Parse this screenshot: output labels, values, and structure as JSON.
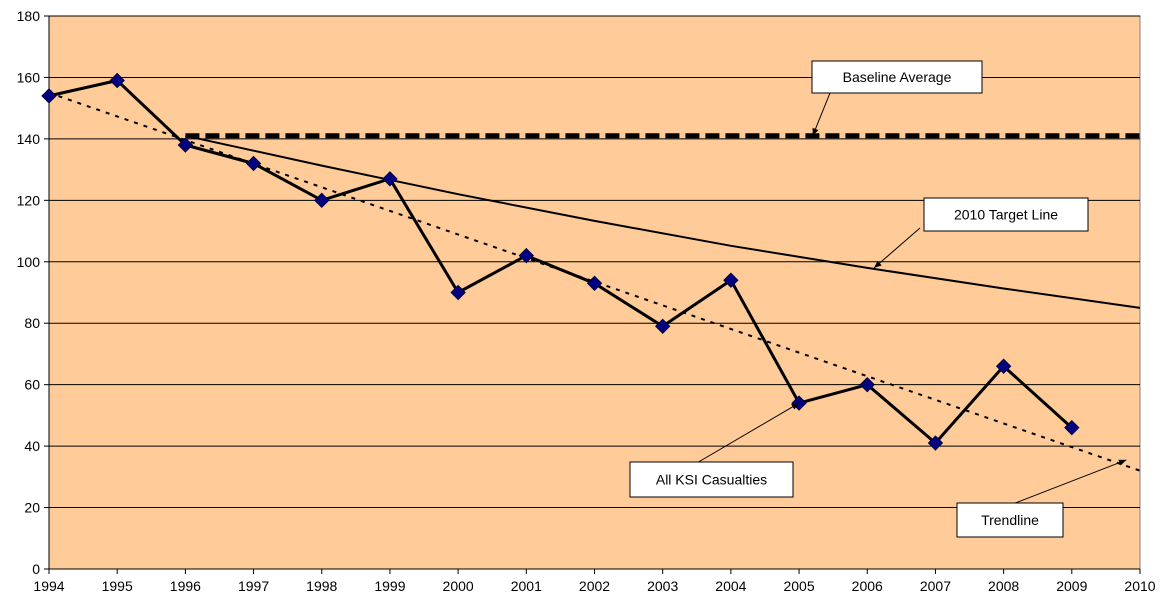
{
  "chart_data": {
    "type": "line",
    "x": [
      1994,
      1995,
      1996,
      1997,
      1998,
      1999,
      2000,
      2001,
      2002,
      2003,
      2004,
      2005,
      2006,
      2007,
      2008,
      2009,
      2010
    ],
    "xlim": [
      1994,
      2010
    ],
    "ylim": [
      0,
      180
    ],
    "yticks": [
      0,
      20,
      40,
      60,
      80,
      100,
      120,
      140,
      160,
      180
    ],
    "grid": "horizontal",
    "plot_background": "#FFCC99",
    "series": [
      {
        "name": "All KSI Casualties",
        "style": "solid-with-diamond-markers",
        "color": "#000000",
        "marker_color": "#000080",
        "x": [
          1994,
          1995,
          1996,
          1997,
          1998,
          1999,
          2000,
          2001,
          2002,
          2003,
          2004,
          2005,
          2006,
          2007,
          2008,
          2009
        ],
        "y": [
          154,
          159,
          138,
          132,
          120,
          127,
          90,
          102,
          93,
          79,
          94,
          54,
          60,
          41,
          66,
          46
        ]
      },
      {
        "name": "Baseline Average",
        "style": "dashed-thick",
        "color": "#000000",
        "x": [
          1996,
          2010
        ],
        "y": [
          141,
          141
        ]
      },
      {
        "name": "2010 Target Line",
        "style": "solid",
        "color": "#000000",
        "x": [
          1996,
          1998,
          2000,
          2002,
          2004,
          2006,
          2008,
          2010
        ],
        "y": [
          141,
          131.3,
          122,
          113.3,
          105.2,
          98,
          91.3,
          85
        ]
      },
      {
        "name": "Trendline",
        "style": "dotted",
        "color": "#000000",
        "x": [
          1994,
          2010
        ],
        "y": [
          155,
          32
        ]
      }
    ],
    "annotations": [
      {
        "text": "Baseline Average",
        "target": [
          2005.2,
          141
        ]
      },
      {
        "text": "2010 Target Line",
        "target": [
          2006.1,
          98
        ]
      },
      {
        "text": "All KSI Casualties",
        "target": [
          2005.0,
          54
        ]
      },
      {
        "text": "Trendline",
        "target": [
          2009.8,
          35.5
        ]
      }
    ]
  }
}
